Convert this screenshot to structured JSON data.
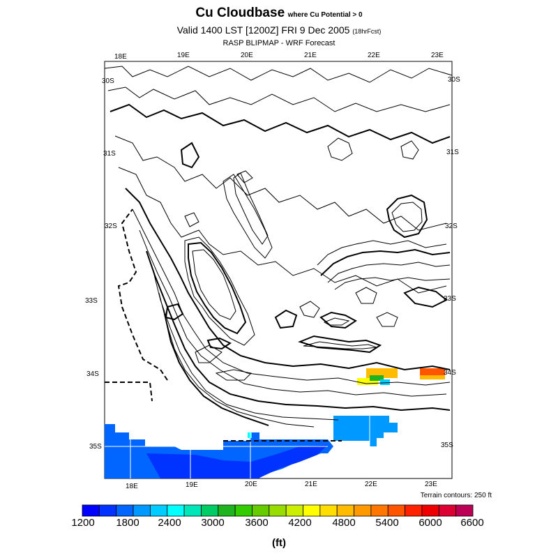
{
  "title": {
    "main": "Cu Cloudbase",
    "suffix": "where Cu Potential > 0",
    "valid_line": "Valid 1400 LST [1200Z] FRI 9 Dec 2005",
    "fcst_note": "(18hrFcst)",
    "source_line": "RASP BLIPMAP - WRF Forecast"
  },
  "axes": {
    "top_lon": [
      "18E",
      "19E",
      "20E",
      "21E",
      "22E",
      "23E"
    ],
    "bottom_lon": [
      "18E",
      "19E",
      "20E",
      "21E",
      "22E",
      "23E"
    ],
    "left_lat": [
      "30S",
      "31S",
      "32S",
      "33S",
      "34S",
      "35S"
    ],
    "right_lat": [
      "30S",
      "31S",
      "32S",
      "33S",
      "34S",
      "35S"
    ]
  },
  "terrain_note": "Terrain contours: 250 ft",
  "colorbar": {
    "units": "(ft)",
    "tick_labels": [
      "1200",
      "1800",
      "2400",
      "3000",
      "3600",
      "4200",
      "4800",
      "5400",
      "6000",
      "6600"
    ],
    "colors": [
      "#0000ff",
      "#0033ff",
      "#0066ff",
      "#0099ff",
      "#00ccff",
      "#00ffff",
      "#00e6b8",
      "#00cc66",
      "#1fb31f",
      "#33cc00",
      "#66cc00",
      "#99dd00",
      "#ccee00",
      "#ffff00",
      "#ffdd00",
      "#ffbb00",
      "#ff9900",
      "#ff7700",
      "#ff5500",
      "#ff2200",
      "#ee0000",
      "#dd0033",
      "#bb0055"
    ]
  },
  "field_colors": {
    "ocean_blue": "#0066ff",
    "deep_blue": "#0033ff",
    "light_blue": "#0099ff",
    "orange": "#ffbb00",
    "red": "#ff5500",
    "yellow": "#ffff00",
    "green": "#1fb31f"
  }
}
